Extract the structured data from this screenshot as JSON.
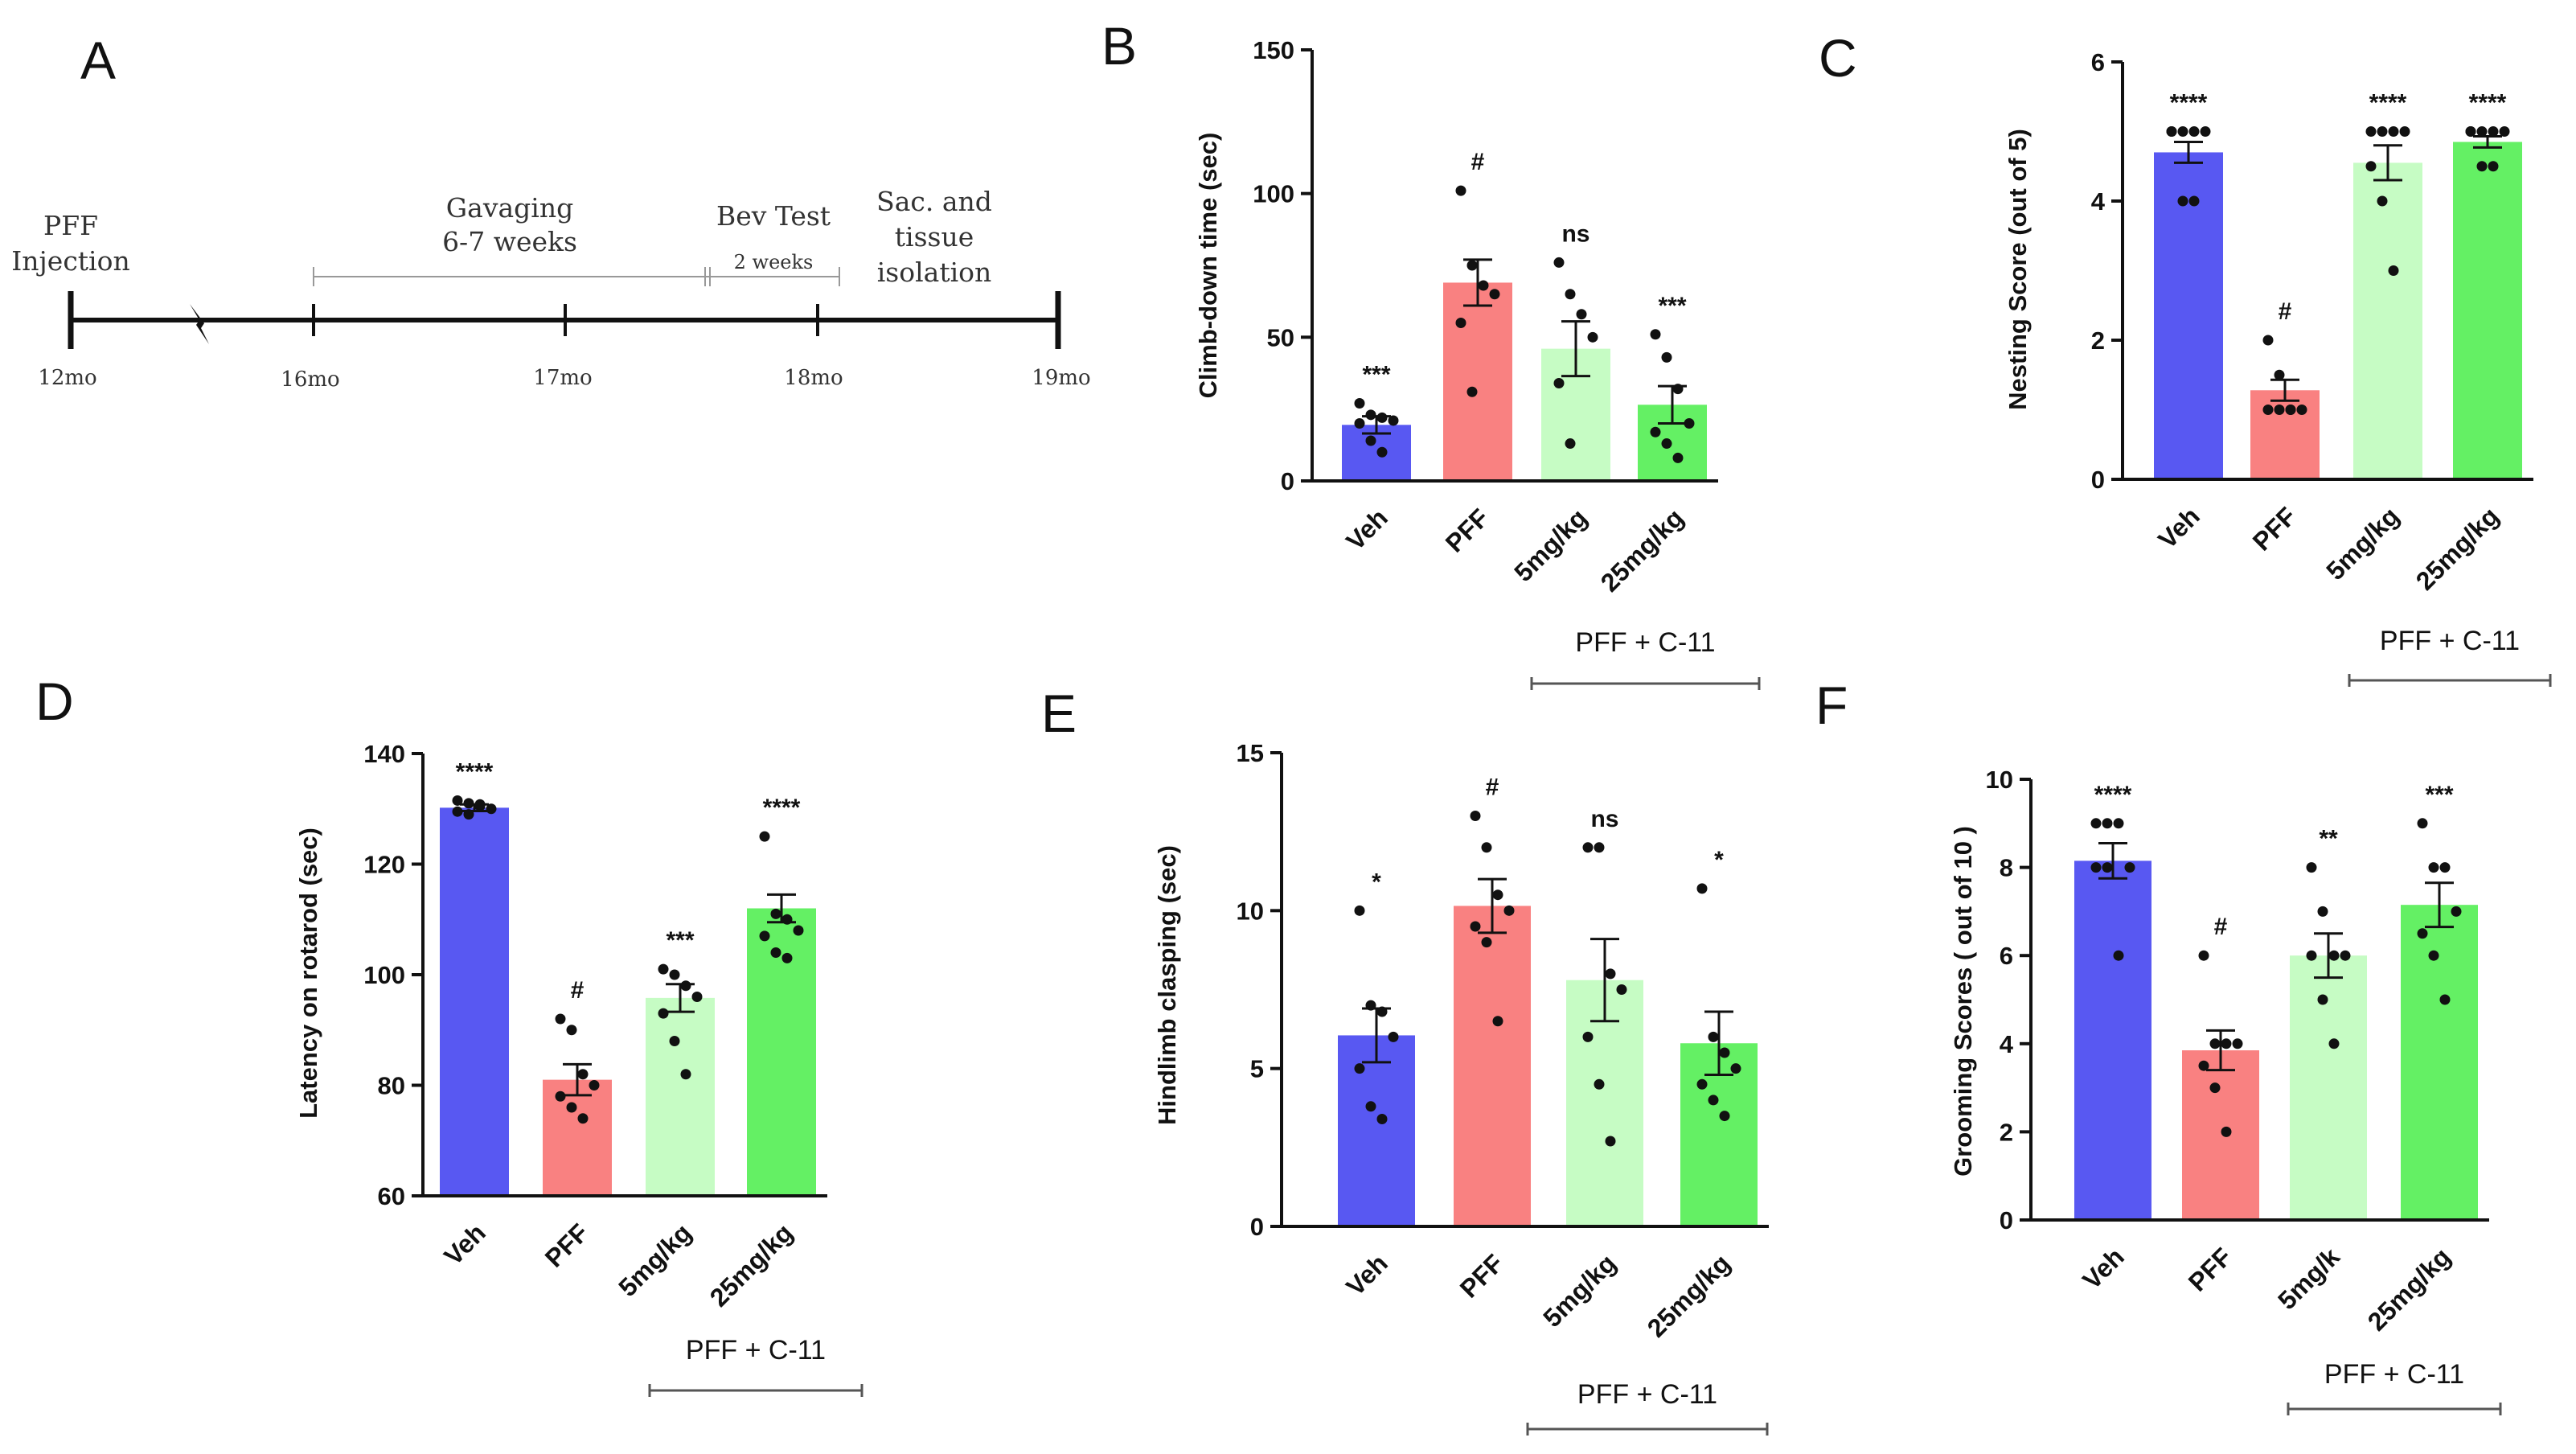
{
  "panels": {
    "A": "A",
    "B": "B",
    "C": "C",
    "D": "D",
    "E": "E",
    "F": "F"
  },
  "timeline": {
    "events": [
      {
        "line1": "PFF",
        "line2": "Injection"
      },
      {
        "line1": "Gavaging",
        "line2": "6-7 weeks"
      },
      {
        "line1": "Bev Test",
        "line2": "2 weeks"
      },
      {
        "line1": "Sac. and",
        "line2": "tissue",
        "line3": "isolation"
      }
    ],
    "months": [
      "12mo",
      "16mo",
      "17mo",
      "18mo",
      "19mo"
    ]
  },
  "chart_data": [
    {
      "id": "B",
      "type": "bar",
      "ylabel": "Climb-down time (sec)",
      "ylim": [
        0,
        150
      ],
      "yticks": [
        0,
        50,
        100,
        150
      ],
      "categories": [
        "Veh",
        "PFF",
        "5mg/kg",
        "25mg/kg"
      ],
      "values": [
        19.5,
        69,
        46,
        26.5
      ],
      "errors": [
        3,
        8,
        9.5,
        6.5
      ],
      "significance": [
        "***",
        "#",
        "ns",
        "***"
      ],
      "points": [
        [
          27,
          23,
          22,
          21,
          20,
          14,
          10
        ],
        [
          101,
          75,
          68,
          65,
          55,
          31
        ],
        [
          76,
          65,
          58,
          50,
          34,
          13
        ],
        [
          51,
          43,
          32,
          20,
          17,
          13,
          8
        ]
      ],
      "group_label": "PFF + C-11",
      "colors": [
        "#5858f2",
        "#f98181",
        "#c6fcc4",
        "#64f064"
      ]
    },
    {
      "id": "C",
      "type": "bar",
      "ylabel": "Nesting Score (out of 5)",
      "ylim": [
        0,
        6
      ],
      "yticks": [
        0,
        2,
        4,
        6
      ],
      "categories": [
        "Veh",
        "PFF",
        "5mg/kg",
        "25mg/kg"
      ],
      "values": [
        4.7,
        1.28,
        4.55,
        4.85
      ],
      "errors": [
        0.15,
        0.15,
        0.25,
        0.08
      ],
      "significance": [
        "****",
        "#",
        "****",
        "****"
      ],
      "points": [
        [
          5,
          5,
          5,
          5,
          5,
          4,
          4
        ],
        [
          2,
          1.5,
          1,
          1,
          1,
          1,
          1
        ],
        [
          5,
          5,
          5,
          5,
          4.5,
          4,
          3
        ],
        [
          5,
          5,
          5,
          5,
          5,
          4.5,
          4.5
        ]
      ],
      "group_label": "PFF + C-11",
      "colors": [
        "#5858f2",
        "#f98181",
        "#c6fcc4",
        "#64f064"
      ]
    },
    {
      "id": "D",
      "type": "bar",
      "ylabel": "Latency on rotarod (sec)",
      "ylim": [
        60,
        140
      ],
      "yticks": [
        60,
        80,
        100,
        120,
        140
      ],
      "categories": [
        "Veh",
        "PFF",
        "5mg/kg",
        "25mg/kg"
      ],
      "values": [
        130.2,
        81,
        95.8,
        112
      ],
      "errors": [
        0.6,
        2.8,
        2.5,
        2.5
      ],
      "significance": [
        "****",
        "#",
        "***",
        "****"
      ],
      "points": [
        [
          131.5,
          131,
          130.5,
          130,
          129.5,
          129,
          130.8
        ],
        [
          92,
          90,
          82,
          80,
          78,
          76,
          74
        ],
        [
          101,
          100,
          98,
          96,
          93,
          88,
          82
        ],
        [
          125,
          111,
          110,
          108,
          107,
          104,
          103
        ]
      ],
      "group_label": "PFF + C-11",
      "colors": [
        "#5858f2",
        "#f98181",
        "#c6fcc4",
        "#64f064"
      ]
    },
    {
      "id": "E",
      "type": "bar",
      "ylabel": "Hindlimb clasping (sec)",
      "ylim": [
        0,
        15
      ],
      "yticks": [
        0,
        5,
        10,
        15
      ],
      "categories": [
        "Veh",
        "PFF",
        "5mg/kg",
        "25mg/kg"
      ],
      "values": [
        6.05,
        10.15,
        7.8,
        5.8
      ],
      "errors": [
        0.85,
        0.85,
        1.3,
        1
      ],
      "significance": [
        "*",
        "#",
        "ns",
        "*"
      ],
      "points": [
        [
          10,
          7,
          6.8,
          6,
          5,
          3.8,
          3.4
        ],
        [
          13,
          12,
          10.5,
          10,
          9.5,
          9,
          6.5
        ],
        [
          12,
          12,
          8,
          7.5,
          6,
          4.5,
          2.7
        ],
        [
          10.7,
          6,
          5.5,
          5,
          4.5,
          4,
          3.5
        ]
      ],
      "group_label": "PFF + C-11",
      "colors": [
        "#5858f2",
        "#f98181",
        "#c6fcc4",
        "#64f064"
      ]
    },
    {
      "id": "F",
      "type": "bar",
      "ylabel": "Grooming Scores ( out of 10 )",
      "ylim": [
        0,
        10
      ],
      "yticks": [
        0,
        2,
        4,
        6,
        8,
        10
      ],
      "categories": [
        "Veh",
        "PFF",
        "5mg/k",
        "25mg/kg"
      ],
      "values": [
        8.15,
        3.85,
        6,
        7.15
      ],
      "errors": [
        0.4,
        0.45,
        0.5,
        0.5
      ],
      "significance": [
        "****",
        "#",
        "**",
        "***"
      ],
      "points": [
        [
          9,
          9,
          9,
          8,
          8,
          8,
          6
        ],
        [
          6,
          4,
          4,
          4,
          3.5,
          3,
          2
        ],
        [
          8,
          7,
          6,
          6,
          6,
          5,
          4
        ],
        [
          9,
          8,
          8,
          7,
          6.5,
          6,
          5
        ]
      ],
      "group_label": "PFF + C-11",
      "colors": [
        "#5858f2",
        "#f98181",
        "#c6fcc4",
        "#64f064"
      ]
    }
  ]
}
